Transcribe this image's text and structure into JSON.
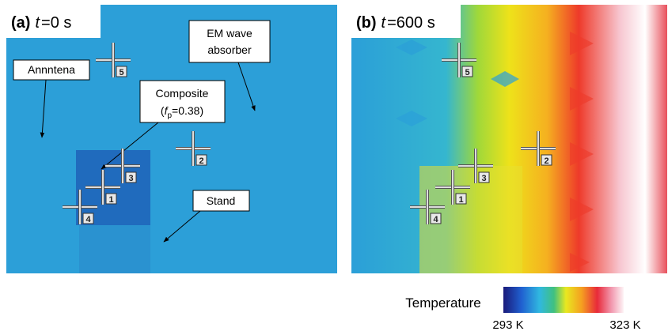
{
  "panels": [
    {
      "tag": "(a)",
      "var": "t",
      "eq": "=0 s",
      "markers": [
        "5",
        "2",
        "3",
        "1",
        "4"
      ]
    },
    {
      "tag": "(b)",
      "var": "t",
      "eq": "=600 s",
      "markers": [
        "5",
        "2",
        "3",
        "1",
        "4"
      ]
    }
  ],
  "annotations": {
    "antenna": "Annntena",
    "absorber": [
      "EM wave",
      "absorber"
    ],
    "composite": "Composite",
    "composite_fp": {
      "open": "(",
      "var": "f",
      "sub": "p",
      "rest": "=0.38)"
    },
    "stand": "Stand"
  },
  "colorbar": {
    "title": "Temperature",
    "min_label": "293 K",
    "max_label": "323 K"
  }
}
